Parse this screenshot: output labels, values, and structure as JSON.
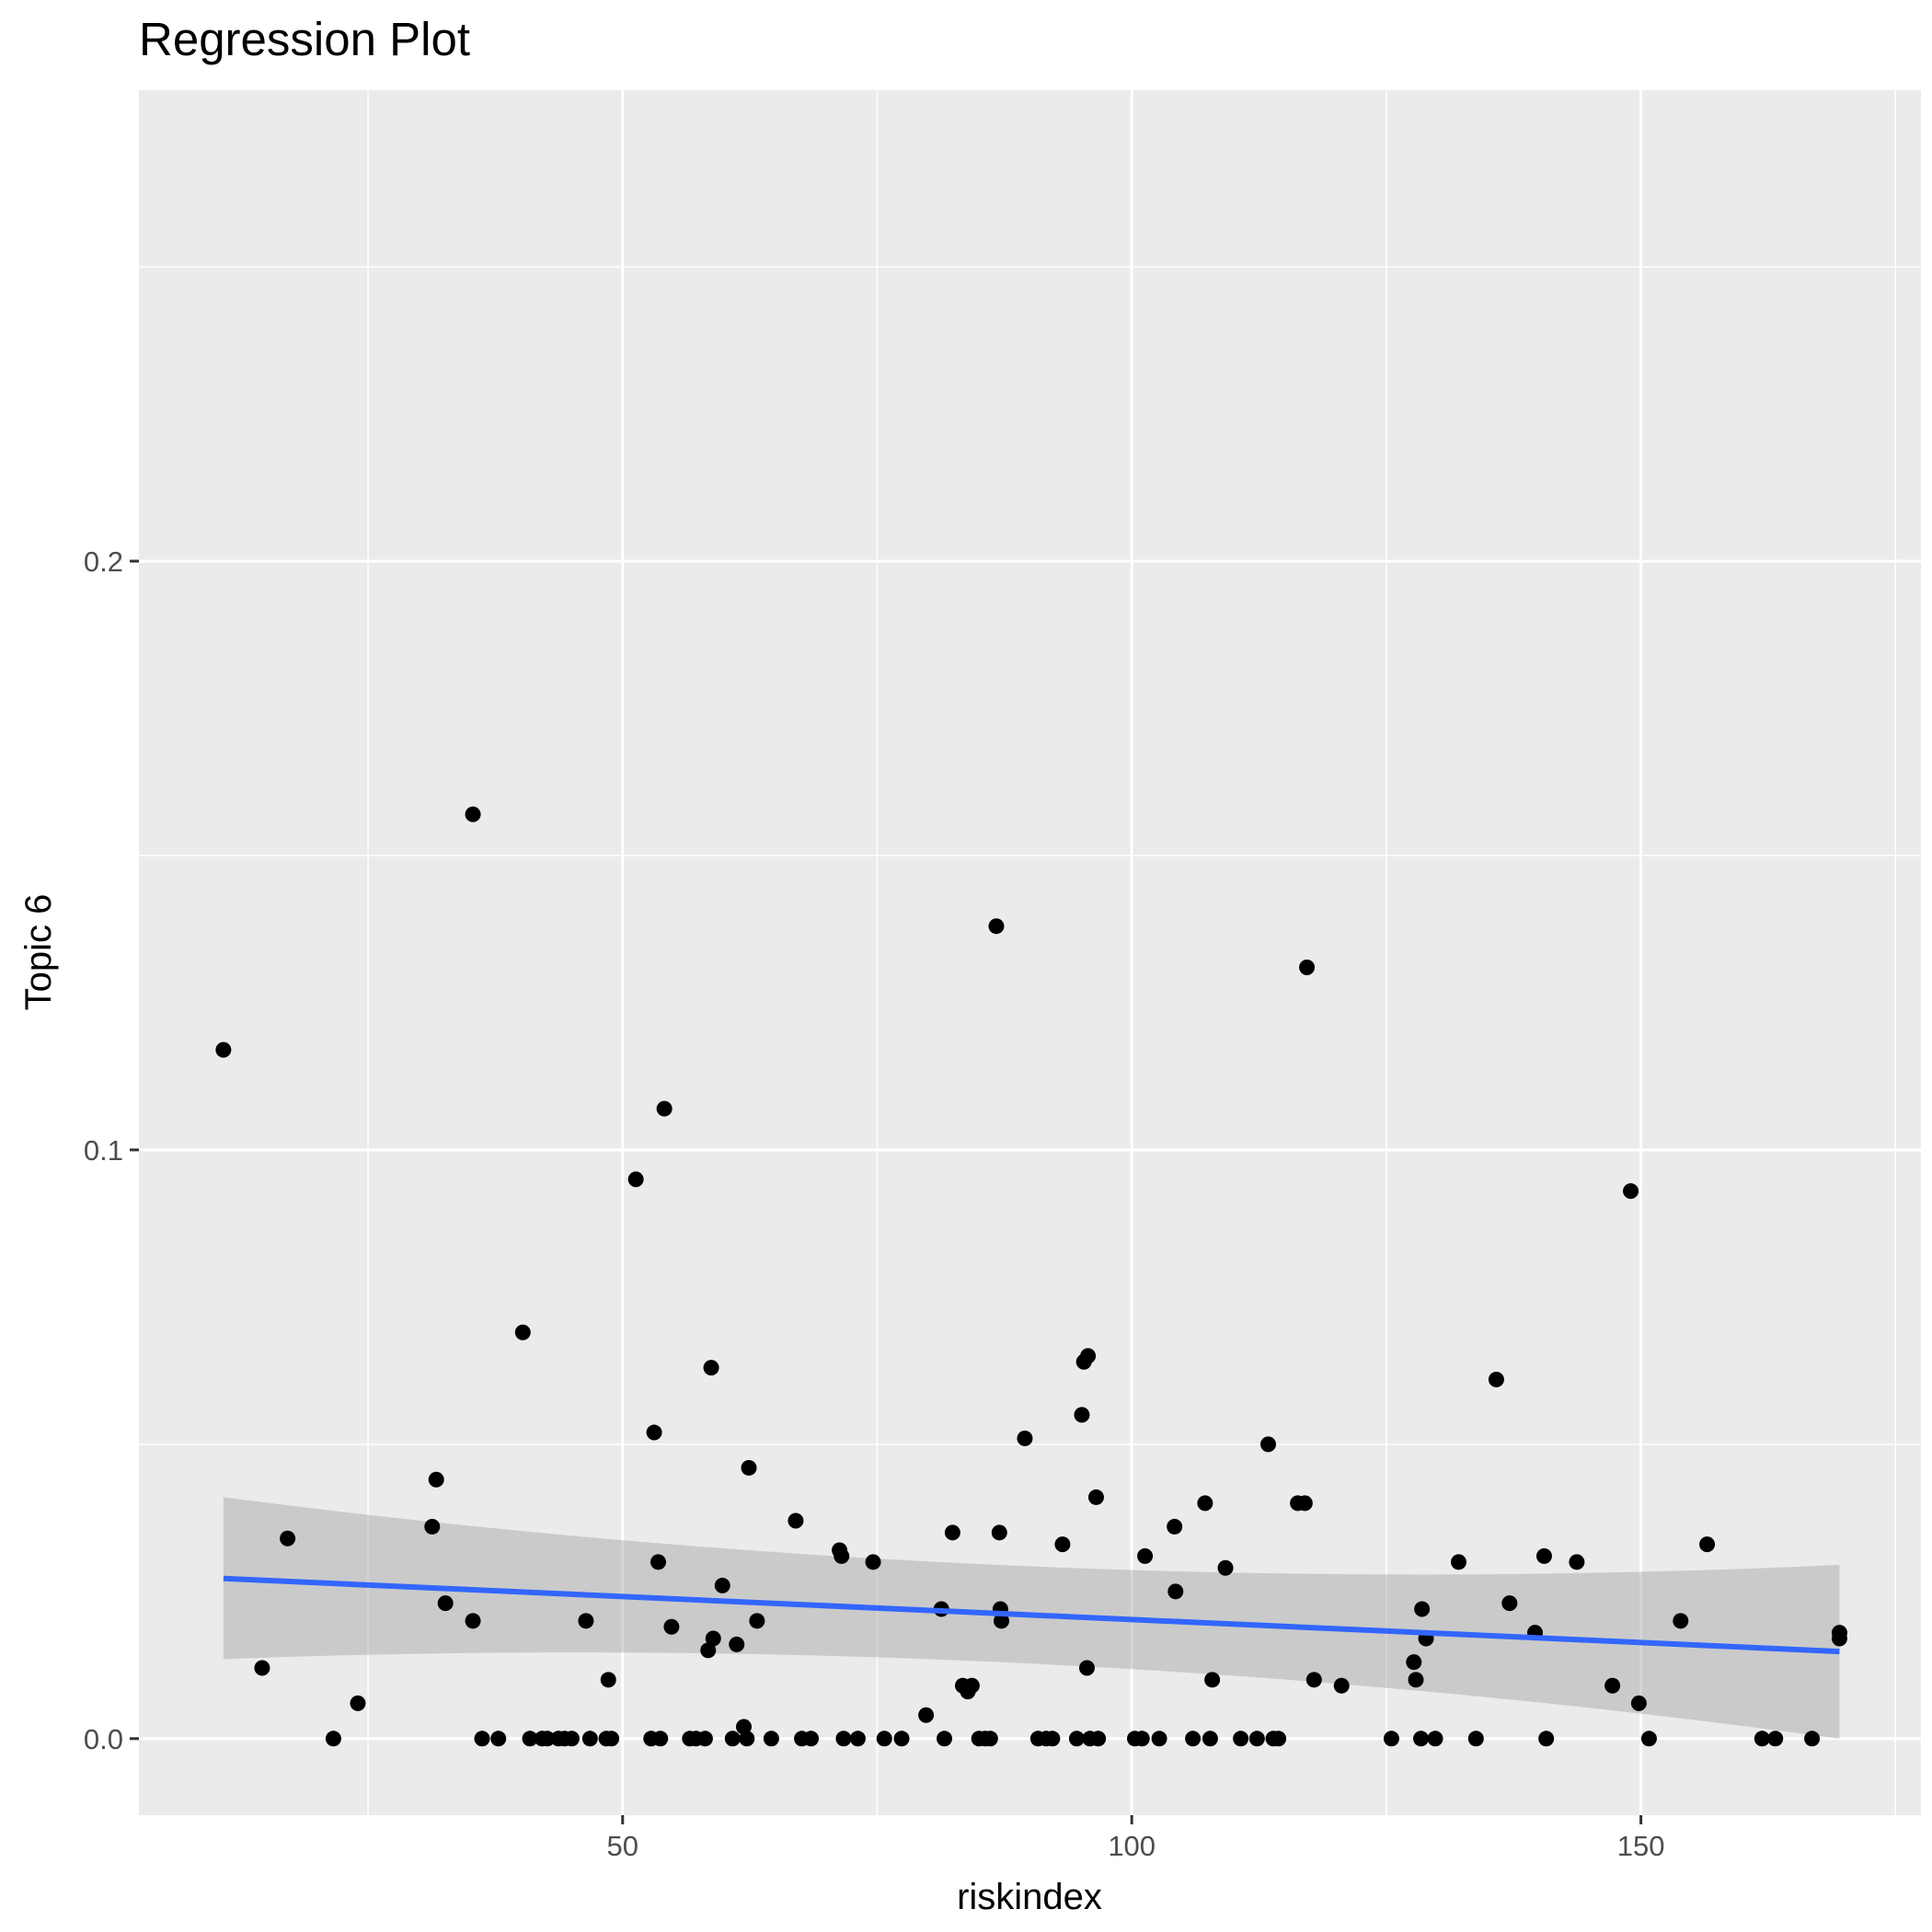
{
  "chart_data": {
    "type": "scatter",
    "title": "Regression Plot",
    "xlabel": "riskindex",
    "ylabel": "Topic 6",
    "xlim": [
      2.5,
      177.5
    ],
    "ylim": [
      -0.013,
      0.28
    ],
    "x_ticks": [
      50,
      100,
      150
    ],
    "y_ticks": [
      0.0,
      0.1,
      0.2
    ],
    "x_tick_labels": [
      "50",
      "100",
      "150"
    ],
    "y_tick_labels": [
      "0.0",
      "0.1",
      "0.2"
    ],
    "grid": true,
    "legend": "none",
    "point_color": "#000000",
    "points": [
      [
        10.8,
        0.117
      ],
      [
        14.6,
        0.012
      ],
      [
        17.1,
        0.034
      ],
      [
        21.6,
        0.0
      ],
      [
        24.0,
        0.006
      ],
      [
        31.3,
        0.036
      ],
      [
        31.7,
        0.044
      ],
      [
        32.6,
        0.023
      ],
      [
        35.3,
        0.157
      ],
      [
        35.3,
        0.02
      ],
      [
        36.2,
        0.0
      ],
      [
        37.8,
        0.0
      ],
      [
        40.2,
        0.069
      ],
      [
        40.9,
        0.0
      ],
      [
        42.1,
        0.0
      ],
      [
        42.6,
        0.0
      ],
      [
        43.7,
        0.0
      ],
      [
        44.3,
        0.0
      ],
      [
        45.0,
        0.0
      ],
      [
        46.4,
        0.02
      ],
      [
        46.8,
        0.0
      ],
      [
        48.4,
        0.0
      ],
      [
        48.6,
        0.01
      ],
      [
        48.9,
        0.0
      ],
      [
        51.3,
        0.095
      ],
      [
        52.8,
        0.0
      ],
      [
        53.1,
        0.052
      ],
      [
        53.5,
        0.03
      ],
      [
        53.7,
        0.0
      ],
      [
        54.1,
        0.107
      ],
      [
        54.8,
        0.019
      ],
      [
        56.6,
        0.0
      ],
      [
        57.2,
        0.0
      ],
      [
        58.1,
        0.0
      ],
      [
        58.4,
        0.015
      ],
      [
        58.7,
        0.063
      ],
      [
        58.9,
        0.017
      ],
      [
        59.8,
        0.026
      ],
      [
        60.8,
        0.0
      ],
      [
        61.2,
        0.016
      ],
      [
        61.9,
        0.002
      ],
      [
        62.2,
        0.0
      ],
      [
        62.4,
        0.046
      ],
      [
        63.2,
        0.02
      ],
      [
        64.6,
        0.0
      ],
      [
        67.0,
        0.037
      ],
      [
        67.6,
        0.0
      ],
      [
        68.5,
        0.0
      ],
      [
        71.3,
        0.032
      ],
      [
        71.5,
        0.031
      ],
      [
        71.7,
        0.0
      ],
      [
        73.1,
        0.0
      ],
      [
        74.6,
        0.03
      ],
      [
        75.7,
        0.0
      ],
      [
        77.4,
        0.0
      ],
      [
        79.8,
        0.004
      ],
      [
        81.3,
        0.022
      ],
      [
        81.6,
        0.0
      ],
      [
        82.4,
        0.035
      ],
      [
        83.4,
        0.009
      ],
      [
        83.9,
        0.008
      ],
      [
        84.3,
        0.009
      ],
      [
        85.0,
        0.0
      ],
      [
        85.6,
        0.0
      ],
      [
        86.1,
        0.0
      ],
      [
        86.7,
        0.138
      ],
      [
        87.0,
        0.035
      ],
      [
        87.1,
        0.022
      ],
      [
        87.2,
        0.02
      ],
      [
        89.5,
        0.051
      ],
      [
        90.8,
        0.0
      ],
      [
        91.6,
        0.0
      ],
      [
        92.2,
        0.0
      ],
      [
        93.2,
        0.033
      ],
      [
        94.6,
        0.0
      ],
      [
        95.1,
        0.055
      ],
      [
        95.3,
        0.064
      ],
      [
        95.6,
        0.012
      ],
      [
        95.7,
        0.065
      ],
      [
        95.9,
        0.0
      ],
      [
        96.5,
        0.041
      ],
      [
        96.7,
        0.0
      ],
      [
        100.3,
        0.0
      ],
      [
        101.0,
        0.0
      ],
      [
        101.3,
        0.031
      ],
      [
        102.7,
        0.0
      ],
      [
        104.2,
        0.036
      ],
      [
        104.3,
        0.025
      ],
      [
        106.0,
        0.0
      ],
      [
        107.2,
        0.04
      ],
      [
        107.7,
        0.0
      ],
      [
        107.9,
        0.01
      ],
      [
        109.2,
        0.029
      ],
      [
        110.7,
        0.0
      ],
      [
        112.3,
        0.0
      ],
      [
        113.4,
        0.05
      ],
      [
        113.9,
        0.0
      ],
      [
        114.4,
        0.0
      ],
      [
        116.3,
        0.04
      ],
      [
        117.0,
        0.04
      ],
      [
        117.2,
        0.131
      ],
      [
        117.9,
        0.01
      ],
      [
        120.6,
        0.009
      ],
      [
        125.5,
        0.0
      ],
      [
        127.7,
        0.013
      ],
      [
        127.9,
        0.01
      ],
      [
        128.4,
        0.0
      ],
      [
        128.5,
        0.022
      ],
      [
        128.9,
        0.017
      ],
      [
        129.8,
        0.0
      ],
      [
        132.1,
        0.03
      ],
      [
        133.8,
        0.0
      ],
      [
        135.8,
        0.061
      ],
      [
        137.1,
        0.023
      ],
      [
        139.6,
        0.018
      ],
      [
        140.5,
        0.031
      ],
      [
        140.7,
        0.0
      ],
      [
        143.7,
        0.03
      ],
      [
        147.2,
        0.009
      ],
      [
        149.0,
        0.093
      ],
      [
        149.8,
        0.006
      ],
      [
        150.8,
        0.0
      ],
      [
        153.9,
        0.02
      ],
      [
        156.5,
        0.033
      ],
      [
        161.9,
        0.0
      ],
      [
        163.2,
        0.0
      ],
      [
        166.8,
        0.0
      ],
      [
        169.5,
        0.017
      ],
      [
        169.5,
        0.018
      ]
    ],
    "regression": {
      "method": "linear",
      "x": [
        10.8,
        169.5
      ],
      "y": [
        0.0272,
        0.0148
      ],
      "ci_lower": [
        0.0135,
        0.0
      ],
      "ci_upper": [
        0.041,
        0.0295
      ],
      "line_color": "#3366FF",
      "band_color": "#999999"
    }
  }
}
